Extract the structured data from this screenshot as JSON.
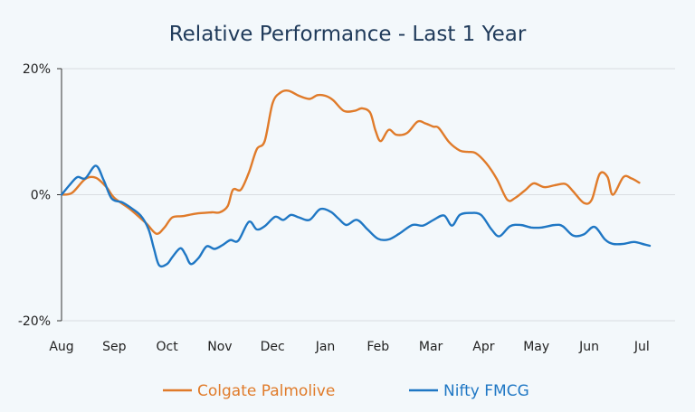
{
  "chart_data": {
    "type": "line",
    "title": "Relative Performance - Last 1 Year",
    "xlabel": "",
    "ylabel": "",
    "x_ticks": [
      "Aug",
      "Sep",
      "Oct",
      "Nov",
      "Dec",
      "Jan",
      "Feb",
      "Mar",
      "Apr",
      "May",
      "Jun",
      "Jul"
    ],
    "y_ticks": [
      "20%",
      "0%",
      "-20%"
    ],
    "ylim": [
      -20,
      20
    ],
    "grid": {
      "horizontal": true,
      "vertical": false
    },
    "legend_position": "bottom",
    "series": [
      {
        "name": "Colgate Palmolive",
        "color": "#e07b2a",
        "points": [
          [
            0.0,
            0.0
          ],
          [
            0.2,
            0.3
          ],
          [
            0.45,
            2.5
          ],
          [
            0.65,
            2.7
          ],
          [
            0.85,
            1.2
          ],
          [
            1.0,
            -0.5
          ],
          [
            1.3,
            -2.3
          ],
          [
            1.6,
            -4.5
          ],
          [
            1.8,
            -6.2
          ],
          [
            1.95,
            -5.2
          ],
          [
            2.1,
            -3.6
          ],
          [
            2.3,
            -3.4
          ],
          [
            2.55,
            -3.0
          ],
          [
            2.85,
            -2.8
          ],
          [
            3.0,
            -2.8
          ],
          [
            3.15,
            -1.8
          ],
          [
            3.25,
            0.8
          ],
          [
            3.4,
            0.8
          ],
          [
            3.55,
            3.5
          ],
          [
            3.7,
            7.2
          ],
          [
            3.85,
            8.5
          ],
          [
            4.0,
            14.5
          ],
          [
            4.15,
            16.2
          ],
          [
            4.3,
            16.5
          ],
          [
            4.5,
            15.7
          ],
          [
            4.7,
            15.2
          ],
          [
            4.85,
            15.8
          ],
          [
            5.0,
            15.7
          ],
          [
            5.15,
            15.0
          ],
          [
            5.35,
            13.3
          ],
          [
            5.55,
            13.3
          ],
          [
            5.7,
            13.7
          ],
          [
            5.85,
            13.0
          ],
          [
            5.95,
            10.2
          ],
          [
            6.05,
            8.5
          ],
          [
            6.2,
            10.3
          ],
          [
            6.35,
            9.5
          ],
          [
            6.55,
            9.8
          ],
          [
            6.75,
            11.6
          ],
          [
            6.9,
            11.3
          ],
          [
            7.05,
            10.8
          ],
          [
            7.15,
            10.6
          ],
          [
            7.35,
            8.3
          ],
          [
            7.55,
            7.0
          ],
          [
            7.7,
            6.8
          ],
          [
            7.85,
            6.6
          ],
          [
            8.05,
            5.0
          ],
          [
            8.25,
            2.5
          ],
          [
            8.45,
            -0.8
          ],
          [
            8.6,
            -0.5
          ],
          [
            8.8,
            0.8
          ],
          [
            8.95,
            1.8
          ],
          [
            9.15,
            1.2
          ],
          [
            9.35,
            1.5
          ],
          [
            9.55,
            1.7
          ],
          [
            9.7,
            0.5
          ],
          [
            9.9,
            -1.3
          ],
          [
            10.05,
            -0.8
          ],
          [
            10.2,
            3.3
          ],
          [
            10.35,
            2.8
          ],
          [
            10.45,
            0.0
          ],
          [
            10.65,
            2.8
          ],
          [
            10.8,
            2.6
          ],
          [
            10.95,
            1.9
          ]
        ]
      },
      {
        "name": "Nifty FMCG",
        "color": "#1f77c4",
        "points": [
          [
            0.0,
            0.0
          ],
          [
            0.15,
            1.5
          ],
          [
            0.3,
            2.8
          ],
          [
            0.45,
            2.6
          ],
          [
            0.65,
            4.6
          ],
          [
            0.8,
            2.3
          ],
          [
            0.95,
            -0.6
          ],
          [
            1.15,
            -1.2
          ],
          [
            1.3,
            -2.0
          ],
          [
            1.5,
            -3.3
          ],
          [
            1.65,
            -5.5
          ],
          [
            1.75,
            -8.5
          ],
          [
            1.85,
            -11.2
          ],
          [
            2.0,
            -11.0
          ],
          [
            2.1,
            -9.9
          ],
          [
            2.25,
            -8.5
          ],
          [
            2.35,
            -9.5
          ],
          [
            2.45,
            -11.0
          ],
          [
            2.6,
            -10.0
          ],
          [
            2.75,
            -8.2
          ],
          [
            2.9,
            -8.6
          ],
          [
            3.05,
            -8.0
          ],
          [
            3.2,
            -7.2
          ],
          [
            3.35,
            -7.3
          ],
          [
            3.55,
            -4.3
          ],
          [
            3.7,
            -5.5
          ],
          [
            3.85,
            -5.0
          ],
          [
            4.05,
            -3.5
          ],
          [
            4.2,
            -4.0
          ],
          [
            4.35,
            -3.2
          ],
          [
            4.5,
            -3.6
          ],
          [
            4.7,
            -4.0
          ],
          [
            4.9,
            -2.3
          ],
          [
            5.1,
            -2.7
          ],
          [
            5.25,
            -3.8
          ],
          [
            5.4,
            -4.8
          ],
          [
            5.6,
            -4.0
          ],
          [
            5.8,
            -5.5
          ],
          [
            6.0,
            -7.0
          ],
          [
            6.2,
            -7.1
          ],
          [
            6.4,
            -6.2
          ],
          [
            6.65,
            -4.8
          ],
          [
            6.85,
            -4.9
          ],
          [
            7.05,
            -4.0
          ],
          [
            7.25,
            -3.3
          ],
          [
            7.4,
            -4.9
          ],
          [
            7.55,
            -3.2
          ],
          [
            7.75,
            -2.9
          ],
          [
            7.95,
            -3.2
          ],
          [
            8.15,
            -5.5
          ],
          [
            8.3,
            -6.6
          ],
          [
            8.5,
            -5.0
          ],
          [
            8.7,
            -4.8
          ],
          [
            8.9,
            -5.2
          ],
          [
            9.1,
            -5.2
          ],
          [
            9.35,
            -4.8
          ],
          [
            9.5,
            -5.0
          ],
          [
            9.7,
            -6.5
          ],
          [
            9.9,
            -6.3
          ],
          [
            10.1,
            -5.1
          ],
          [
            10.3,
            -7.1
          ],
          [
            10.45,
            -7.8
          ],
          [
            10.65,
            -7.8
          ],
          [
            10.85,
            -7.5
          ],
          [
            11.05,
            -7.9
          ],
          [
            11.15,
            -8.1
          ]
        ]
      }
    ]
  }
}
